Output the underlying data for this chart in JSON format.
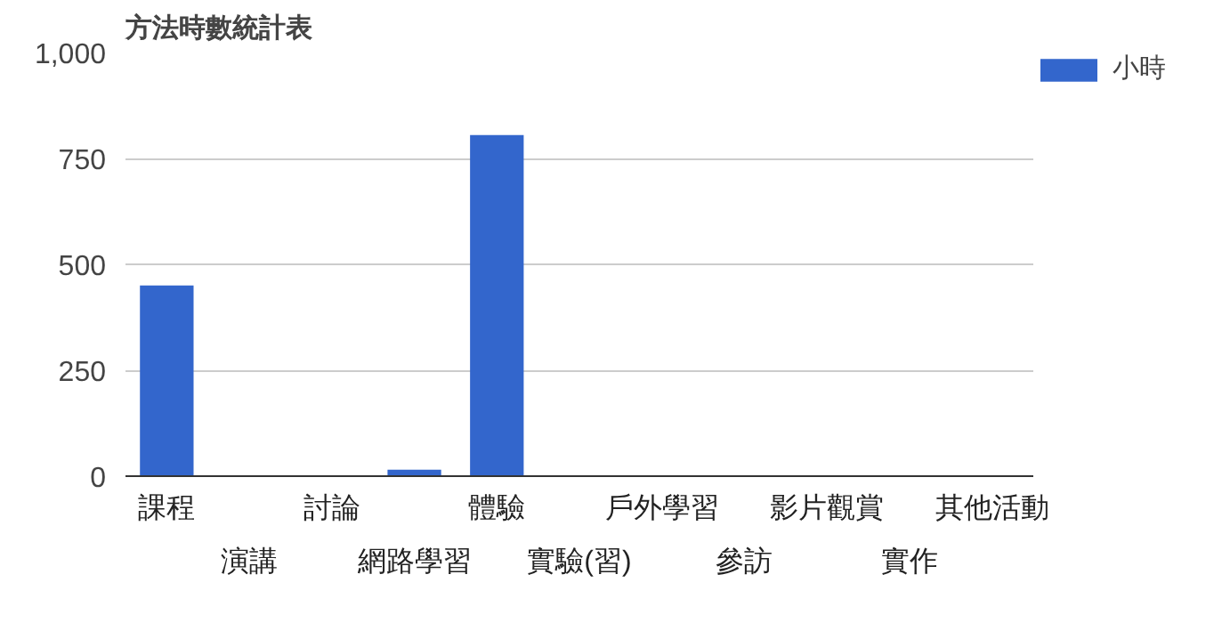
{
  "chart_data": {
    "type": "bar",
    "title": "方法時數統計表",
    "categories": [
      "課程",
      "演講",
      "討論",
      "網路學習",
      "體驗",
      "實驗(習)",
      "戶外學習",
      "參訪",
      "影片觀賞",
      "實作",
      "其他活動"
    ],
    "series": [
      {
        "name": "小時",
        "color": "#3366cc",
        "values": [
          450,
          0,
          0,
          15,
          805,
          0,
          0,
          0,
          0,
          0,
          0
        ]
      }
    ],
    "ylim": [
      0,
      1000
    ],
    "yticks": [
      0,
      {
        "value": 250,
        "label": "250"
      },
      {
        "value": 500,
        "label": "500"
      },
      {
        "value": 750,
        "label": "750"
      },
      {
        "value": 1000,
        "label": "1,000"
      }
    ],
    "grid": "y",
    "legend": "right"
  }
}
